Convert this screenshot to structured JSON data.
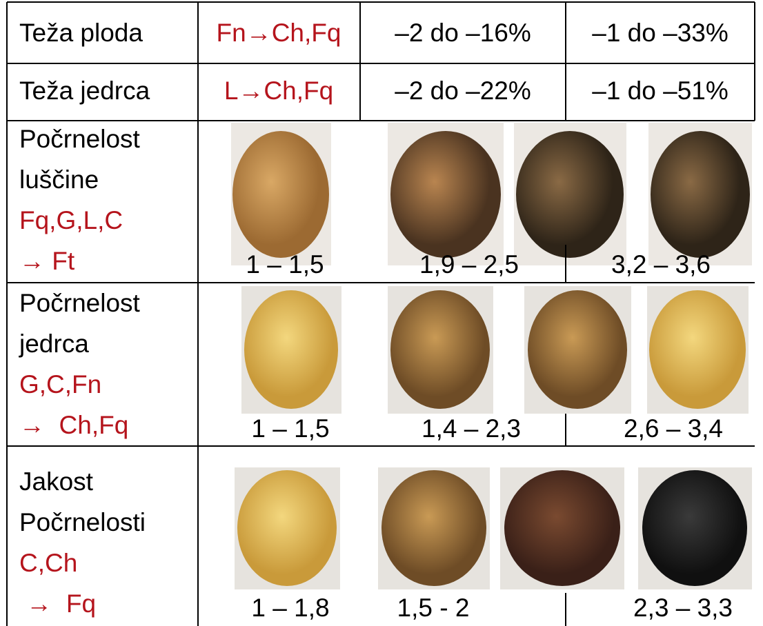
{
  "rows": [
    {
      "cells": [
        "Teža ploda",
        "Fn→Ch,Fq",
        "–2 do –16%",
        "–1 do –33%"
      ]
    },
    {
      "cells": [
        "Teža jedrca",
        "L→Ch,Fq",
        "–2 do –22%",
        "–1 do –51%"
      ]
    }
  ],
  "image_rows": [
    {
      "label": [
        "Počrnelost",
        "luščine"
      ],
      "sources": [
        "Fq,G,L,C",
        "→ Ft"
      ],
      "ranges": [
        "1 – 1,5",
        "1,9 – 2,5",
        "3,2 – 3,6"
      ]
    },
    {
      "label": [
        "Počrnelost",
        "jedrca"
      ],
      "sources": [
        "G,C,Fn",
        "→  Ch,Fq"
      ],
      "ranges": [
        "1 – 1,5",
        "1,4 – 2,3",
        "2,6 – 3,4"
      ]
    },
    {
      "label": [
        "Jakost",
        "Počrnelosti"
      ],
      "sources": [
        "C,Ch",
        " →  Fq"
      ],
      "ranges": [
        "1 – 1,8",
        "1,5 - 2",
        "2,3 – 3,3"
      ]
    }
  ]
}
